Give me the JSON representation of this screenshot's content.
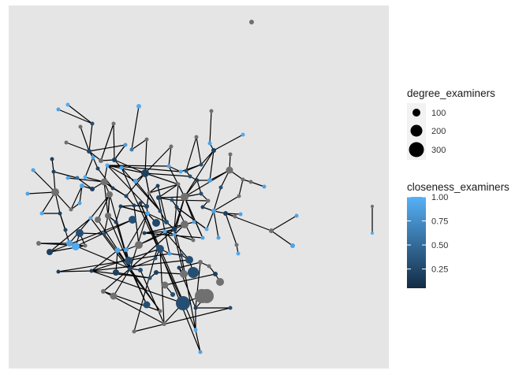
{
  "chart_data": {
    "type": "network",
    "panel_background": "#e5e5e5",
    "edge_color": "#000000",
    "grey_node_color": "#707070",
    "legend_size": {
      "title": "degree_examiners",
      "entries": [
        {
          "label": "100",
          "value": 100
        },
        {
          "label": "200",
          "value": 200
        },
        {
          "label": "300",
          "value": 300
        }
      ]
    },
    "legend_color": {
      "title": "closeness_examiners",
      "low_color": "#132b43",
      "high_color": "#56b1f7",
      "range": [
        0.05,
        1.0
      ],
      "ticks": [
        {
          "label": "1.00",
          "value": 1.0
        },
        {
          "label": "0.75",
          "value": 0.75
        },
        {
          "label": "0.50",
          "value": 0.5
        },
        {
          "label": "0.25",
          "value": 0.25
        }
      ]
    }
  }
}
